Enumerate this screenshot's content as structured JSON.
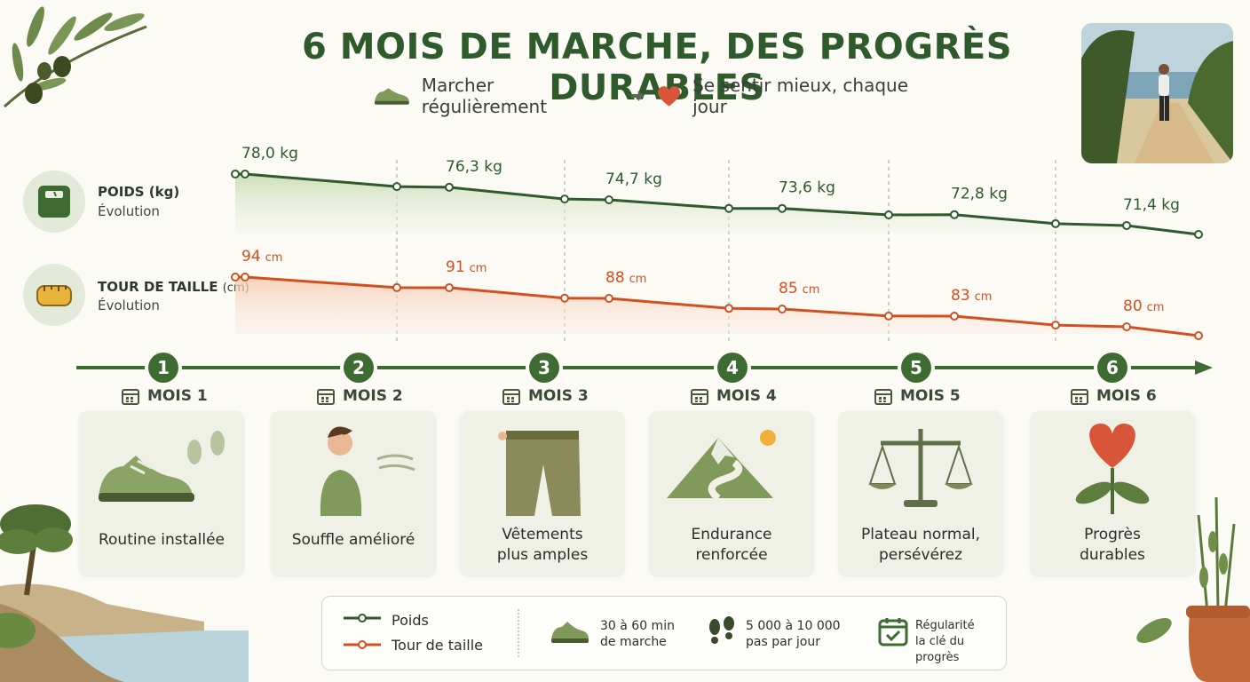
{
  "header": {
    "title": "6 MOIS DE MARCHE, DES PROGRÈS DURABLES",
    "subtitle_left": "Marcher régulièrement",
    "subtitle_right": "Se sentir mieux, chaque jour",
    "icons": [
      "shoe-icon",
      "arrow-icon",
      "heart-icon"
    ]
  },
  "metrics": {
    "weight": {
      "title": "POIDS (kg)",
      "sub": "Évolution",
      "icon": "scale-icon"
    },
    "waist": {
      "title": "TOUR DE TAILLE",
      "unit": "(cm)",
      "sub": "Évolution",
      "icon": "tape-measure-icon"
    }
  },
  "chart_data": {
    "type": "line",
    "x": [
      1,
      2,
      3,
      4,
      5,
      6
    ],
    "series": [
      {
        "name": "Poids",
        "unit": "kg",
        "color": "#2f5a2c",
        "values": [
          78.0,
          76.3,
          74.7,
          73.6,
          72.8,
          71.4
        ],
        "labels": [
          "78,0 kg",
          "76,3 kg",
          "74,7 kg",
          "73,6 kg",
          "72,8 kg",
          "71,4 kg"
        ]
      },
      {
        "name": "Tour de taille",
        "unit": "cm",
        "color": "#d2501f",
        "values": [
          94,
          91,
          88,
          85,
          83,
          80
        ],
        "labels": [
          "94",
          "91",
          "88",
          "85",
          "83",
          "80"
        ]
      }
    ]
  },
  "timeline": {
    "months": [
      {
        "num": "1",
        "label": "MOIS 1",
        "text": "Routine installée",
        "art": "walking-shoe-icon"
      },
      {
        "num": "2",
        "label": "MOIS 2",
        "text": "Souffle amélioré",
        "art": "breathing-woman-icon"
      },
      {
        "num": "3",
        "label": "MOIS 3",
        "text": "Vêtements\nplus amples",
        "art": "loose-pants-icon"
      },
      {
        "num": "4",
        "label": "MOIS 4",
        "text": "Endurance\nrenforcée",
        "art": "mountain-path-icon"
      },
      {
        "num": "5",
        "label": "MOIS 5",
        "text": "Plateau normal,\npersévérez",
        "art": "balance-scale-icon"
      },
      {
        "num": "6",
        "label": "MOIS 6",
        "text": "Progrès\ndurables",
        "art": "heart-plant-icon"
      }
    ]
  },
  "legend": {
    "weight": "Poids",
    "waist": "Tour de taille",
    "walk_time_1": "30 à 60 min",
    "walk_time_2": "de marche",
    "steps_1": "5 000 à 10 000",
    "steps_2": "pas par jour",
    "regularity_1": "Régularité",
    "regularity_2": "la clé du progrès"
  },
  "colors": {
    "green": "#2f5a2c",
    "orange": "#d2501f",
    "card": "#f0f1e6"
  }
}
